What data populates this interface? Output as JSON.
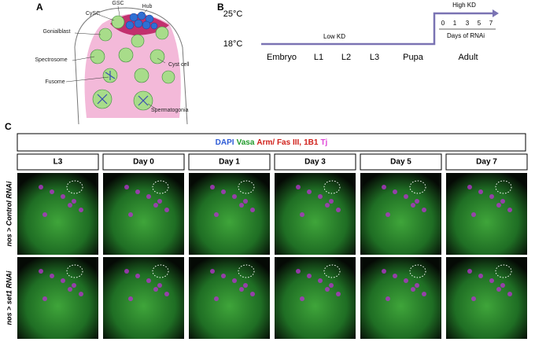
{
  "panel_a": {
    "label": "A",
    "labels": [
      "GSC",
      "Hub",
      "CySC",
      "Gonialblast",
      "Spectrosome",
      "Cyst cell",
      "Fusome",
      "Spermatogonia"
    ]
  },
  "panel_b": {
    "label": "B",
    "temps": [
      "25°C",
      "18°C"
    ],
    "phases": [
      "Low KD",
      "High KD"
    ],
    "stages": [
      "Embryo",
      "L1",
      "L2",
      "L3",
      "Pupa",
      "Adult"
    ],
    "days": [
      "0",
      "1",
      "3",
      "5",
      "7"
    ],
    "days_label": "Days of RNAi"
  },
  "panel_c": {
    "label": "C",
    "stain": [
      "DAPI",
      "Vasa",
      "Arm/ Fas III,",
      "1B1",
      "Tj"
    ],
    "columns": [
      "L3",
      "Day 0",
      "Day 1",
      "Day 3",
      "Day 5",
      "Day 7"
    ],
    "rows": [
      "nos > Control RNAi",
      "nos > set1 RNAi"
    ]
  }
}
